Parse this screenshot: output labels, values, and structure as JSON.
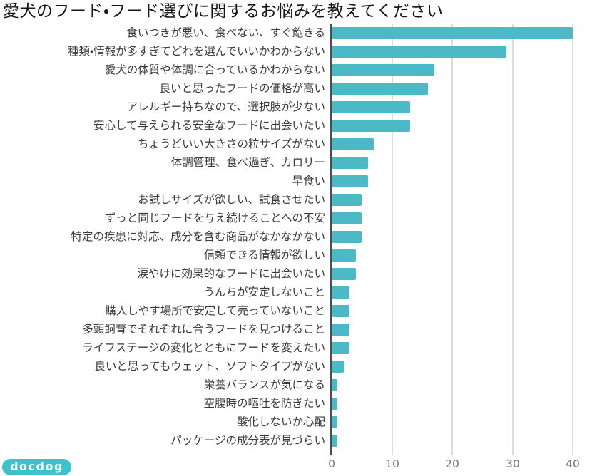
{
  "logo": {
    "text": "docdog"
  },
  "colors": {
    "bar": "#4BB9C6",
    "axis": "#4D4D4D",
    "grid": "#DCDCDC",
    "tick_label": "#757575",
    "category_label": "#3A3A3A",
    "title": "#161616",
    "logo_bg": "#3FC2CD",
    "logo_text": "#FFFFFF"
  },
  "chart_data": {
    "type": "bar",
    "orientation": "horizontal",
    "title": "愛犬のフード・フード選びに関するお悩みを教えてください",
    "categories": [
      "食いつきが悪い、食べない、すぐ飽きる",
      "種類・情報が多すぎてどれを選んでいいかわからない",
      "愛犬の体質や体調に合っているかわからない",
      "良いと思ったフードの価格が高い",
      "アレルギー持ちなので、選択肢が少ない",
      "安心して与えられる安全なフードに出会いたい",
      "ちょうどいい大きさの粒サイズがない",
      "体調管理、食べ過ぎ、カロリー",
      "早食い",
      "お試しサイズが欲しい、試食させたい",
      "ずっと同じフードを与え続けることへの不安",
      "特定の疾患に対応、成分を含む商品がなかなかない",
      "信頼できる情報が欲しい",
      "涙やけに効果的なフードに出会いたい",
      "うんちが安定しないこと",
      "購入しやす場所で安定して売っていないこと",
      "多頭飼育でそれぞれに合うフードを見つけること",
      "ライフステージの変化とともにフードを変えたい",
      "良いと思ってもウェット、ソフトタイプがない",
      "栄養バランスが気になる",
      "空腹時の嘔吐を防ぎたい",
      "酸化しないか心配",
      "パッケージの成分表が見づらい"
    ],
    "values": [
      40,
      29,
      17,
      16,
      13,
      13,
      7,
      6,
      6,
      5,
      5,
      5,
      4,
      4,
      3,
      3,
      3,
      3,
      2,
      1,
      1,
      1,
      1
    ],
    "xlabel": "",
    "ylabel": "",
    "xlim": [
      0,
      40
    ],
    "x_ticks": [
      0,
      10,
      20,
      30,
      40
    ],
    "grid": true,
    "legend": false
  }
}
